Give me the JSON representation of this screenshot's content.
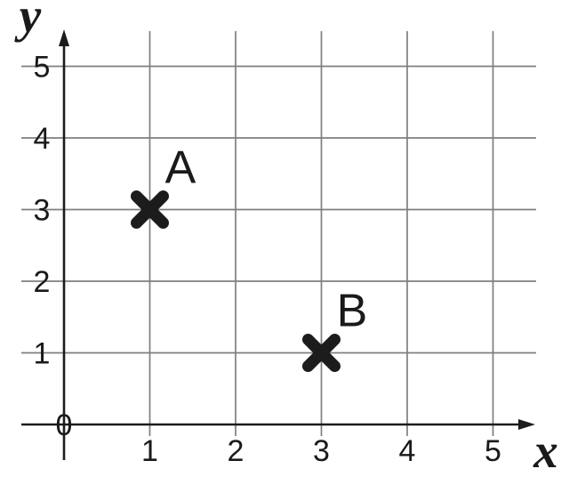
{
  "chart_data": {
    "type": "scatter",
    "title": "",
    "xlabel": "x",
    "ylabel": "y",
    "xlim": [
      0,
      5
    ],
    "ylim": [
      0,
      5
    ],
    "grid": true,
    "legend": "none",
    "x_ticks": [
      1,
      2,
      3,
      4,
      5
    ],
    "y_ticks": [
      1,
      2,
      3,
      4,
      5
    ],
    "origin_label": "0",
    "marker": "x-cross",
    "points": [
      {
        "label": "A",
        "x": 1,
        "y": 3
      },
      {
        "label": "B",
        "x": 3,
        "y": 1
      }
    ],
    "colors": {
      "background": "#ffffff",
      "grid": "#7f7f7f",
      "axis": "#1c1c1c",
      "marker": "#1c1c1c",
      "text": "#1a1a1a"
    }
  }
}
